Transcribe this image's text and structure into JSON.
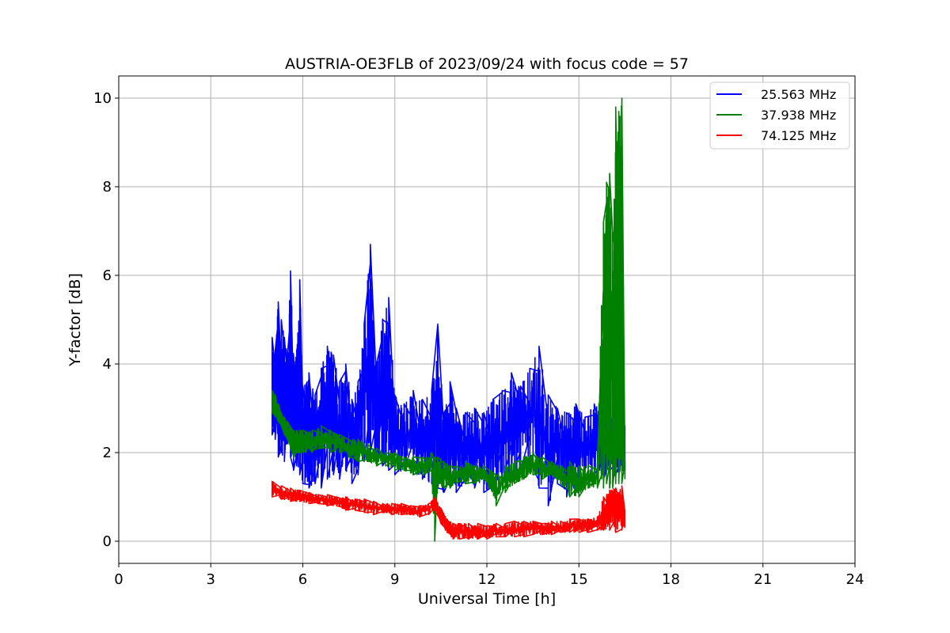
{
  "chart_data": {
    "type": "line",
    "title": "AUSTRIA-OE3FLB of 2023/09/24 with focus code = 57",
    "xlabel": "Universal Time [h]",
    "ylabel": "Y-factor [dB]",
    "xlim": [
      0,
      24
    ],
    "ylim": [
      -0.5,
      10.5
    ],
    "x_ticks": [
      0,
      3,
      6,
      9,
      12,
      15,
      18,
      21,
      24
    ],
    "y_ticks": [
      0,
      2,
      4,
      6,
      8,
      10
    ],
    "grid": true,
    "legend_position": "top-right",
    "series": [
      {
        "name": "25.563 MHz",
        "color": "#0000ff",
        "x": [
          5.0,
          5.1,
          5.2,
          5.3,
          5.4,
          5.5,
          5.6,
          5.7,
          5.8,
          5.9,
          6.0,
          6.2,
          6.4,
          6.6,
          6.8,
          7.0,
          7.2,
          7.4,
          7.6,
          7.8,
          8.0,
          8.2,
          8.4,
          8.6,
          8.8,
          9.0,
          9.3,
          9.6,
          9.9,
          10.2,
          10.4,
          10.6,
          10.8,
          11.0,
          11.3,
          11.6,
          11.9,
          12.2,
          12.5,
          12.8,
          13.1,
          13.4,
          13.7,
          14.0,
          14.3,
          14.6,
          14.9,
          15.2,
          15.5,
          15.8,
          16.0,
          16.2,
          16.4,
          16.5
        ],
        "y_min": [
          2.4,
          2.3,
          1.9,
          2.0,
          1.8,
          2.2,
          1.9,
          1.6,
          1.7,
          1.5,
          1.3,
          1.2,
          1.3,
          1.2,
          1.4,
          1.5,
          1.4,
          1.6,
          1.3,
          1.5,
          1.8,
          2.0,
          1.9,
          1.7,
          1.6,
          1.5,
          1.6,
          1.5,
          1.4,
          1.3,
          1.2,
          1.1,
          1.2,
          1.1,
          1.3,
          1.2,
          1.1,
          1.2,
          1.3,
          1.4,
          1.6,
          1.8,
          1.2,
          0.8,
          1.3,
          1.0,
          1.2,
          1.4,
          1.5,
          1.4,
          1.6,
          1.5,
          1.6,
          1.6
        ],
        "y_max": [
          4.6,
          4.3,
          5.4,
          5.0,
          4.6,
          4.2,
          6.1,
          4.2,
          4.3,
          5.9,
          3.5,
          3.8,
          3.3,
          3.9,
          4.4,
          4.2,
          3.6,
          4.0,
          3.2,
          3.6,
          4.9,
          6.7,
          4.0,
          5.0,
          5.5,
          3.3,
          3.1,
          3.4,
          3.2,
          3.4,
          4.9,
          2.9,
          3.6,
          3.0,
          2.9,
          3.0,
          2.9,
          3.2,
          3.4,
          3.8,
          3.5,
          3.9,
          4.4,
          3.3,
          3.0,
          2.9,
          3.1,
          2.8,
          3.1,
          3.0,
          2.9,
          2.7,
          2.6,
          2.6
        ]
      },
      {
        "name": "37.938 MHz",
        "color": "#008000",
        "x": [
          5.0,
          5.1,
          5.2,
          5.3,
          5.4,
          5.5,
          5.6,
          5.7,
          5.8,
          5.9,
          6.0,
          6.3,
          6.6,
          6.9,
          7.2,
          7.5,
          7.8,
          8.1,
          8.4,
          8.7,
          9.0,
          9.3,
          9.6,
          9.9,
          10.2,
          10.3,
          10.4,
          10.6,
          10.8,
          11.0,
          11.3,
          11.6,
          11.9,
          12.1,
          12.3,
          12.6,
          12.9,
          13.2,
          13.5,
          13.8,
          14.1,
          14.4,
          14.7,
          15.0,
          15.3,
          15.6,
          15.8,
          15.9,
          16.0,
          16.1,
          16.2,
          16.3,
          16.4,
          16.5
        ],
        "y_min": [
          2.9,
          2.8,
          2.7,
          2.6,
          2.4,
          2.3,
          2.1,
          1.9,
          2.0,
          2.0,
          2.0,
          2.0,
          2.1,
          2.0,
          2.0,
          1.9,
          1.8,
          1.8,
          1.7,
          1.7,
          1.6,
          1.6,
          1.5,
          1.5,
          1.5,
          0.0,
          1.3,
          1.2,
          1.2,
          1.3,
          1.3,
          1.3,
          1.4,
          1.2,
          0.8,
          1.1,
          1.3,
          1.4,
          1.5,
          1.4,
          1.5,
          1.3,
          1.0,
          1.0,
          1.2,
          1.2,
          1.2,
          1.3,
          1.2,
          1.2,
          1.3,
          1.3,
          1.3,
          1.4
        ],
        "y_max": [
          3.4,
          3.3,
          3.1,
          2.9,
          2.8,
          2.7,
          2.6,
          2.5,
          2.5,
          2.5,
          2.5,
          2.5,
          2.6,
          2.5,
          2.4,
          2.3,
          2.3,
          2.2,
          2.1,
          2.0,
          2.0,
          1.9,
          1.9,
          1.9,
          2.0,
          1.9,
          1.9,
          1.8,
          1.7,
          1.7,
          1.8,
          1.7,
          1.7,
          1.6,
          1.5,
          1.7,
          1.8,
          1.9,
          2.0,
          1.9,
          1.8,
          1.7,
          1.8,
          1.7,
          1.7,
          1.7,
          7.2,
          8.1,
          8.3,
          7.0,
          9.8,
          9.7,
          10.0,
          1.8
        ]
      },
      {
        "name": "74.125 MHz",
        "color": "#ff0000",
        "x": [
          5.0,
          5.3,
          5.6,
          5.9,
          6.2,
          6.5,
          6.8,
          7.1,
          7.4,
          7.7,
          8.0,
          8.3,
          8.6,
          8.9,
          9.2,
          9.5,
          9.8,
          10.1,
          10.3,
          10.5,
          10.7,
          10.9,
          11.1,
          11.4,
          11.7,
          12.0,
          12.3,
          12.6,
          12.9,
          13.2,
          13.5,
          13.8,
          14.1,
          14.4,
          14.7,
          15.0,
          15.3,
          15.6,
          15.8,
          16.0,
          16.2,
          16.4,
          16.5
        ],
        "y_min": [
          1.0,
          0.95,
          0.9,
          0.9,
          0.85,
          0.85,
          0.8,
          0.8,
          0.7,
          0.7,
          0.65,
          0.6,
          0.65,
          0.6,
          0.6,
          0.6,
          0.55,
          0.6,
          0.7,
          0.4,
          0.2,
          0.05,
          0.05,
          0.05,
          0.05,
          0.05,
          0.1,
          0.1,
          0.1,
          0.1,
          0.15,
          0.15,
          0.15,
          0.2,
          0.2,
          0.2,
          0.2,
          0.25,
          0.25,
          0.25,
          0.2,
          0.25,
          0.3
        ],
        "y_max": [
          1.35,
          1.25,
          1.2,
          1.15,
          1.1,
          1.05,
          1.05,
          1.0,
          1.0,
          0.95,
          0.95,
          0.9,
          0.85,
          0.85,
          0.85,
          0.8,
          0.8,
          0.85,
          1.0,
          0.75,
          0.5,
          0.4,
          0.4,
          0.4,
          0.4,
          0.35,
          0.4,
          0.4,
          0.45,
          0.45,
          0.45,
          0.4,
          0.45,
          0.45,
          0.5,
          0.5,
          0.5,
          0.55,
          1.0,
          1.15,
          1.2,
          1.25,
          0.7
        ]
      }
    ]
  }
}
